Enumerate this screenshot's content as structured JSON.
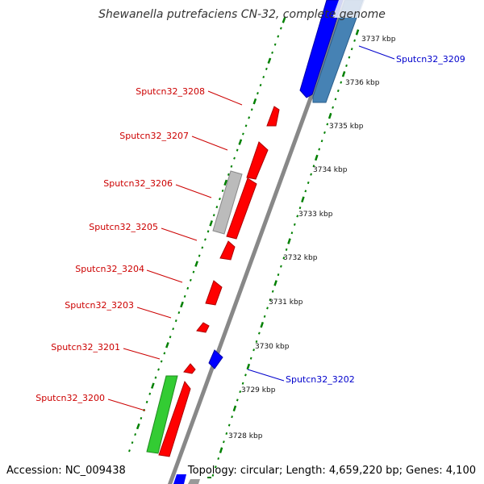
{
  "title": "Shewanella putrefaciens CN-32, complete genome",
  "footer": {
    "accession": "Accession: NC_009438",
    "topology": "Topology: circular; Length: 4,659,220 bp; Genes: 4,100"
  },
  "colors": {
    "forward": "#ff0000",
    "reverse": "#0000ff",
    "reverse_alt": "#4682b4",
    "other": "#bbbbbb",
    "rna": "#33cc33",
    "backbone": "#888888",
    "ticks": "#008000"
  },
  "kbp_ticks": [
    "3737 kbp",
    "3736 kbp",
    "3735 kbp",
    "3734 kbp",
    "3733 kbp",
    "3732 kbp",
    "3731 kbp",
    "3730 kbp",
    "3729 kbp",
    "3728 kbp"
  ],
  "gene_labels": [
    {
      "text": "Sputcn32_3209",
      "color": "#0000cc"
    },
    {
      "text": "Sputcn32_3208",
      "color": "#cc0000"
    },
    {
      "text": "Sputcn32_3207",
      "color": "#cc0000"
    },
    {
      "text": "Sputcn32_3206",
      "color": "#cc0000"
    },
    {
      "text": "Sputcn32_3205",
      "color": "#cc0000"
    },
    {
      "text": "Sputcn32_3204",
      "color": "#cc0000"
    },
    {
      "text": "Sputcn32_3203",
      "color": "#cc0000"
    },
    {
      "text": "Sputcn32_3201",
      "color": "#cc0000"
    },
    {
      "text": "Sputcn32_3202",
      "color": "#0000cc"
    },
    {
      "text": "Sputcn32_3200",
      "color": "#cc0000"
    }
  ]
}
